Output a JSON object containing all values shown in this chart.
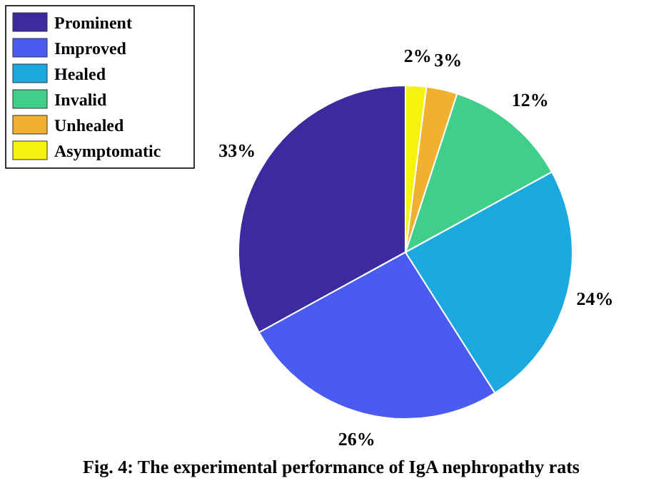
{
  "chart_data": {
    "type": "pie",
    "title": "Fig. 4: The experimental performance of IgA nephropathy rats",
    "categories": [
      "Prominent",
      "Improved",
      "Healed",
      "Invalid",
      "Unhealed",
      "Asymptomatic"
    ],
    "values": [
      33,
      26,
      24,
      12,
      3,
      2
    ],
    "value_labels": [
      "33%",
      "26%",
      "24%",
      "12%",
      "3%",
      "2%"
    ],
    "colors": [
      "#3b2b9e",
      "#4a5cf0",
      "#1ba9e0",
      "#40cf8a",
      "#f0b030",
      "#f7f20c"
    ],
    "legend": "top left"
  }
}
